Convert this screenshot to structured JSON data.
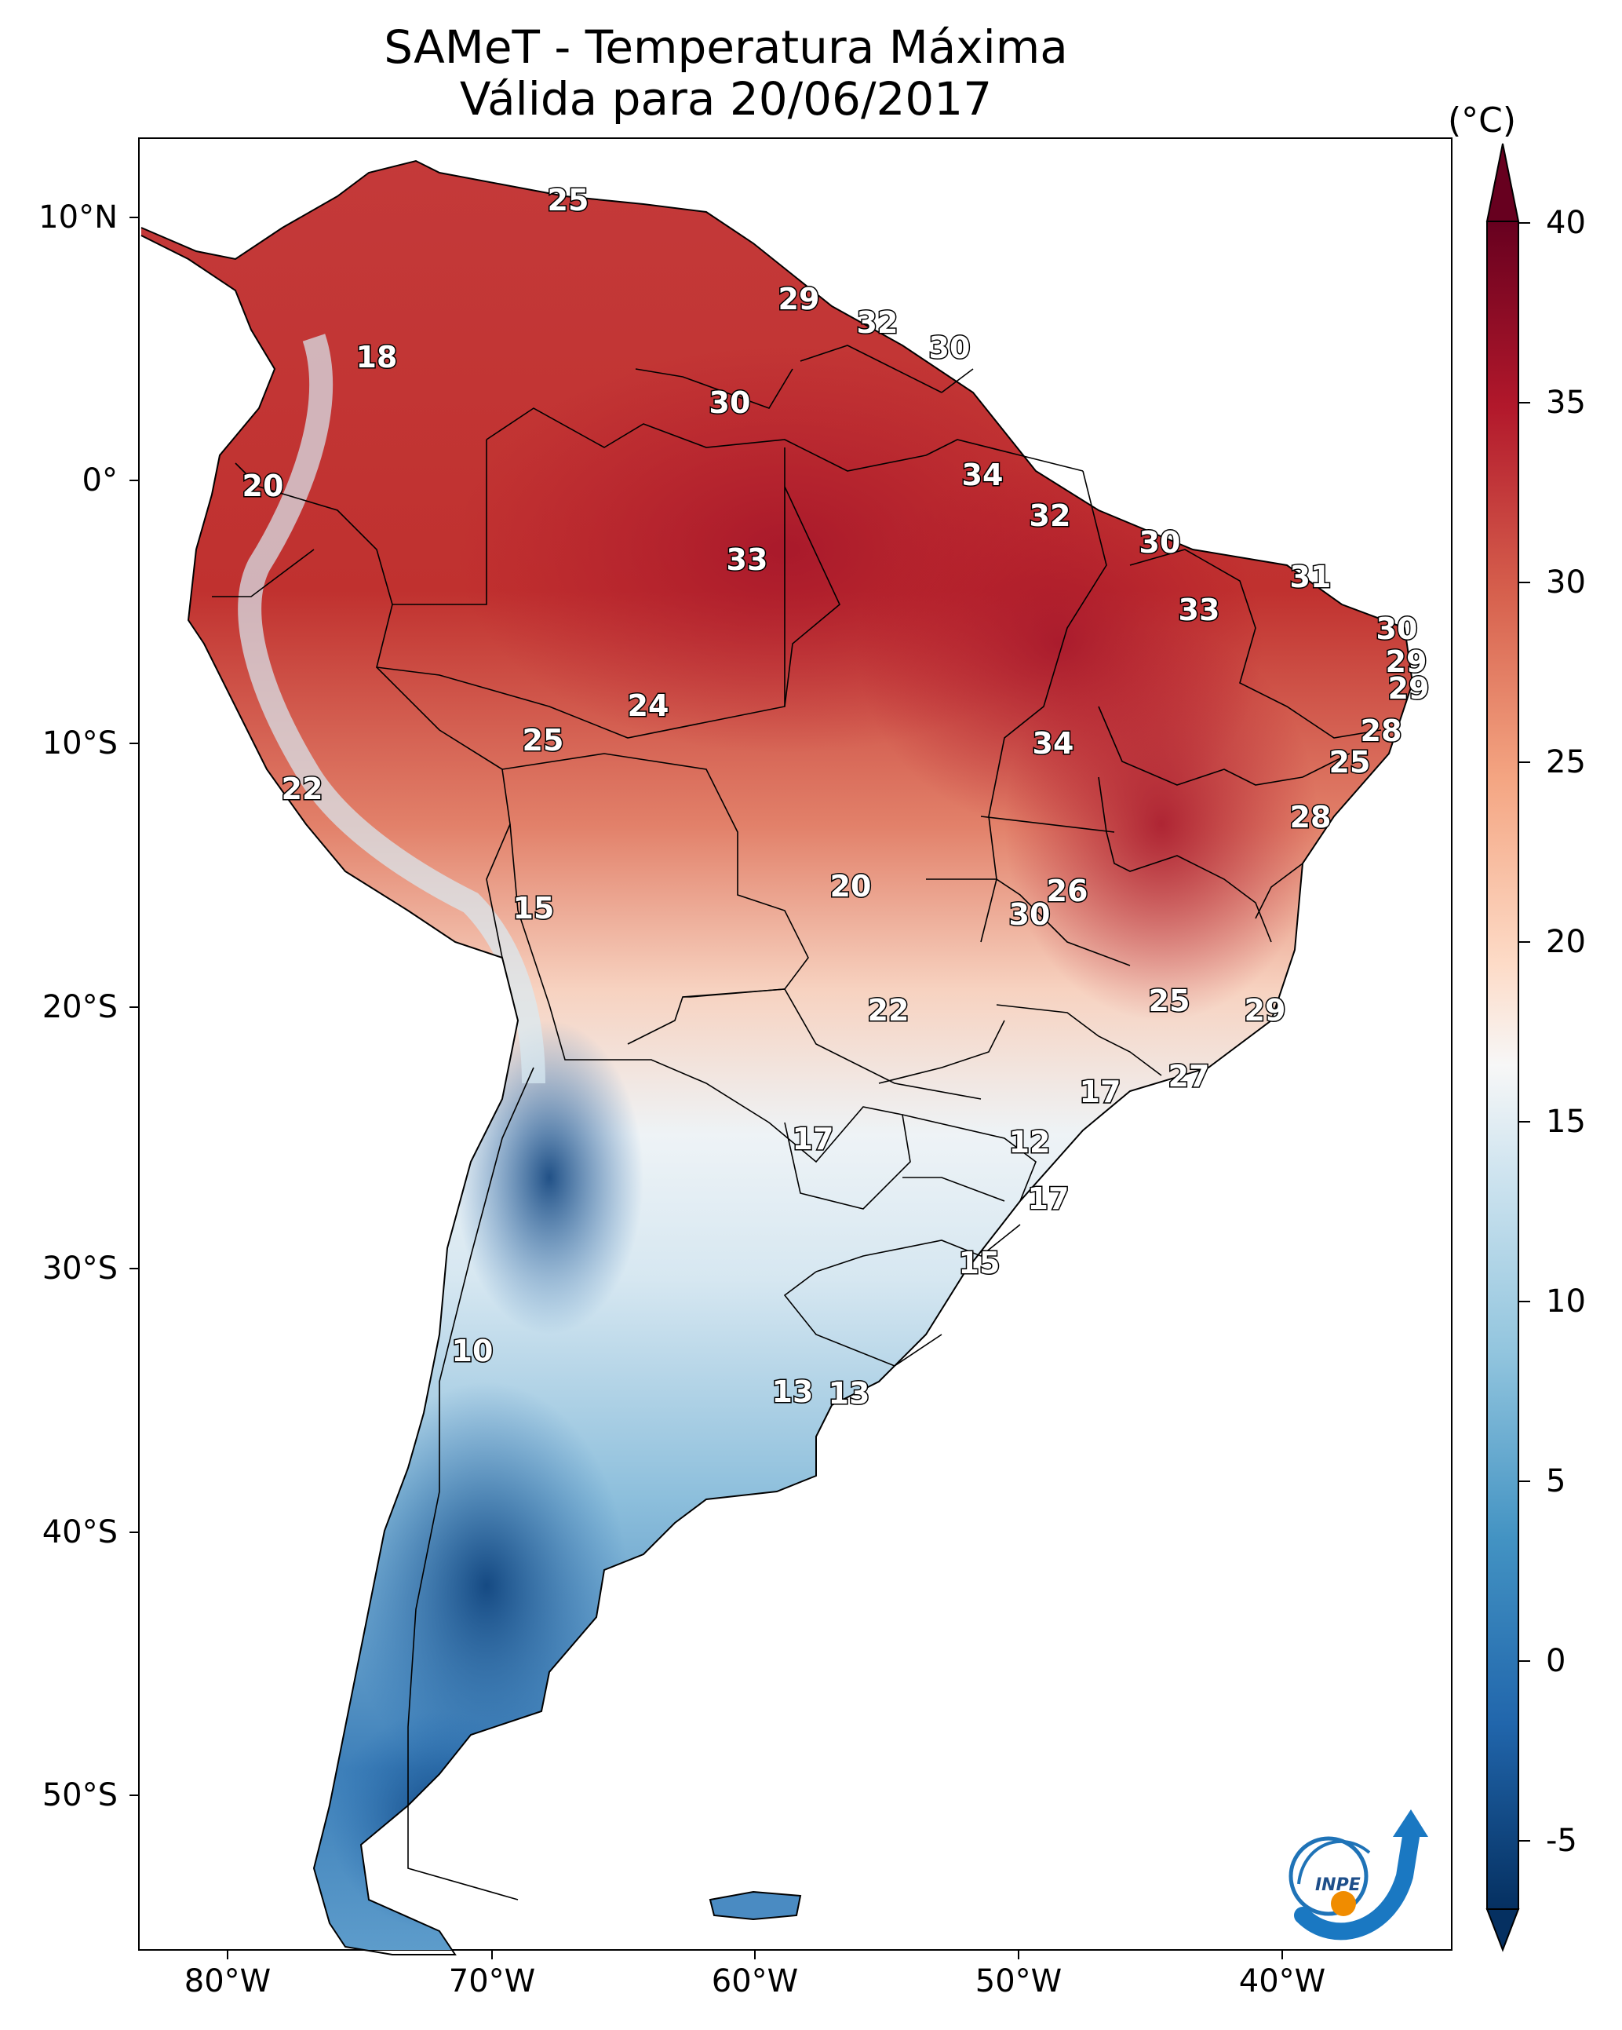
{
  "title": [
    "SAMeT - Temperatura Máxima",
    "Válida para 20/06/2017"
  ],
  "colorbar": {
    "unit": "(°C)",
    "ticks": [
      "40",
      "35",
      "30",
      "25",
      "20",
      "15",
      "10",
      "5",
      "0",
      "-5"
    ],
    "range": [
      -5,
      40
    ],
    "colormap": "RdBu_r",
    "colors": {
      "hot": "#67001f",
      "warm": "#d6604d",
      "neutral": "#f7f7f7",
      "cool": "#92c5de",
      "cold": "#053061"
    }
  },
  "axes": {
    "lat_labels": [
      "10°N",
      "0°",
      "10°S",
      "20°S",
      "30°S",
      "40°S",
      "50°S"
    ],
    "lon_labels": [
      "80°W",
      "70°W",
      "60°W",
      "50°W",
      "40°W"
    ]
  },
  "map_values": [
    "25",
    "29",
    "32",
    "30",
    "18",
    "30",
    "20",
    "34",
    "32",
    "33",
    "30",
    "31",
    "33",
    "30",
    "29",
    "29",
    "24",
    "28",
    "25",
    "34",
    "22",
    "25",
    "28",
    "26",
    "20",
    "15",
    "30",
    "22",
    "25",
    "29",
    "27",
    "17",
    "17",
    "12",
    "17",
    "15",
    "10",
    "13",
    "13"
  ],
  "logo": {
    "text": "INPE",
    "icon": "inpe-logo-icon"
  }
}
